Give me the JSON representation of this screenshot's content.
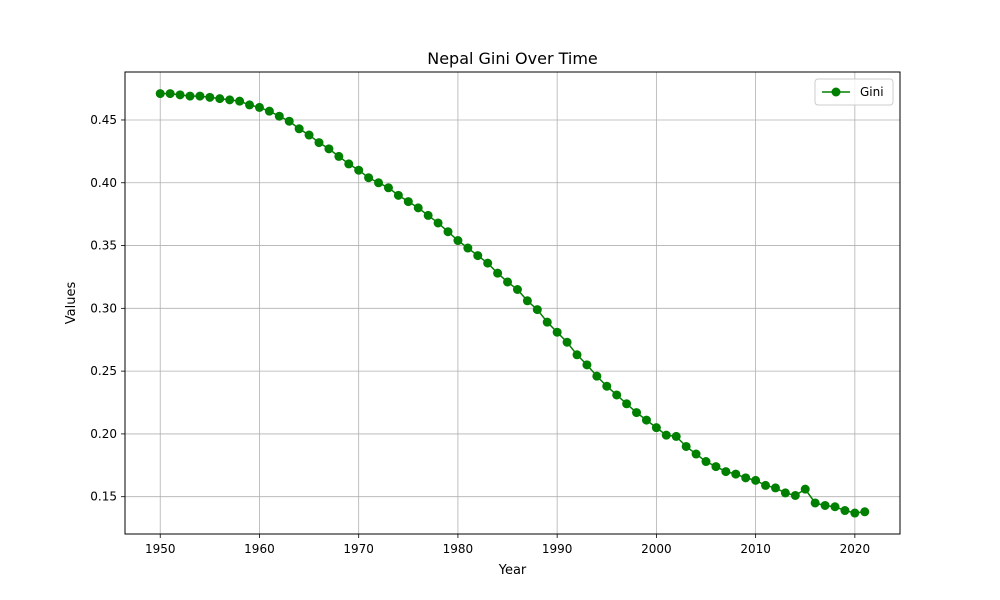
{
  "chart_data": {
    "type": "line",
    "title": "Nepal Gini Over Time",
    "xlabel": "Year",
    "ylabel": "Values",
    "xlim": [
      1946.45,
      2024.55
    ],
    "ylim": [
      0.1203,
      0.4882
    ],
    "xticks": [
      1950,
      1960,
      1970,
      1980,
      1990,
      2000,
      2010,
      2020
    ],
    "yticks": [
      0.15,
      0.2,
      0.25,
      0.3,
      0.35,
      0.4,
      0.45
    ],
    "ytick_labels": [
      "0.15",
      "0.20",
      "0.25",
      "0.30",
      "0.35",
      "0.40",
      "0.45"
    ],
    "grid": true,
    "legend_position": "top-right",
    "colors": {
      "series": "#008000",
      "grid": "#b0b0b0",
      "axis": "#000000"
    },
    "series": [
      {
        "name": "Gini",
        "marker": "circle",
        "x": [
          1950,
          1951,
          1952,
          1953,
          1954,
          1955,
          1956,
          1957,
          1958,
          1959,
          1960,
          1961,
          1962,
          1963,
          1964,
          1965,
          1966,
          1967,
          1968,
          1969,
          1970,
          1971,
          1972,
          1973,
          1974,
          1975,
          1976,
          1977,
          1978,
          1979,
          1980,
          1981,
          1982,
          1983,
          1984,
          1985,
          1986,
          1987,
          1988,
          1989,
          1990,
          1991,
          1992,
          1993,
          1994,
          1995,
          1996,
          1997,
          1998,
          1999,
          2000,
          2001,
          2002,
          2003,
          2004,
          2005,
          2006,
          2007,
          2008,
          2009,
          2010,
          2011,
          2012,
          2013,
          2014,
          2015,
          2016,
          2017,
          2018,
          2019,
          2020,
          2021
        ],
        "values": [
          0.471,
          0.471,
          0.47,
          0.469,
          0.469,
          0.468,
          0.467,
          0.466,
          0.465,
          0.462,
          0.46,
          0.457,
          0.453,
          0.449,
          0.443,
          0.438,
          0.432,
          0.427,
          0.421,
          0.415,
          0.41,
          0.404,
          0.4,
          0.396,
          0.39,
          0.385,
          0.38,
          0.374,
          0.368,
          0.361,
          0.354,
          0.348,
          0.342,
          0.336,
          0.328,
          0.321,
          0.315,
          0.306,
          0.299,
          0.289,
          0.281,
          0.273,
          0.263,
          0.255,
          0.246,
          0.238,
          0.231,
          0.224,
          0.217,
          0.211,
          0.205,
          0.199,
          0.198,
          0.19,
          0.184,
          0.178,
          0.174,
          0.17,
          0.168,
          0.165,
          0.163,
          0.159,
          0.157,
          0.153,
          0.151,
          0.156,
          0.145,
          0.143,
          0.142,
          0.139,
          0.137,
          0.138
        ]
      }
    ]
  }
}
